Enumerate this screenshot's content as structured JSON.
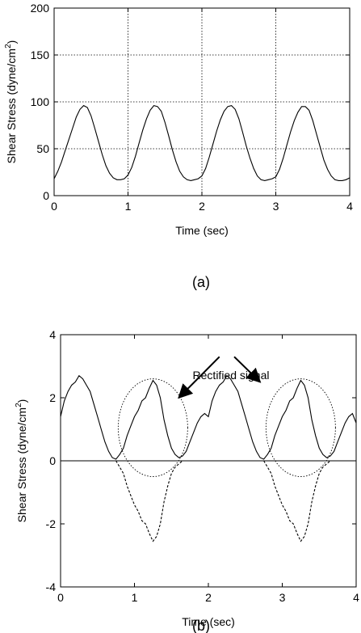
{
  "figure": {
    "panels": [
      {
        "label": "(a)",
        "xlabel": "Time (sec)",
        "ylabel_main": "Shear Stress (dyne/cm",
        "ylabel_sup": "2",
        "ylabel_close": ")"
      },
      {
        "label": "(b)",
        "xlabel": "Time (sec)",
        "ylabel_main": "Shear Stress (dyne/cm",
        "ylabel_sup": "2",
        "ylabel_close": ")",
        "annotation": "Rectified signal"
      }
    ]
  },
  "chart_data": [
    {
      "type": "line",
      "title": "",
      "xlabel": "Time (sec)",
      "ylabel": "Shear Stress (dyne/cm2)",
      "xlim": [
        0,
        4
      ],
      "ylim": [
        0,
        200
      ],
      "xticks": [
        0,
        1,
        2,
        3,
        4
      ],
      "yticks": [
        0,
        50,
        100,
        150,
        200
      ],
      "grid": "dotted",
      "gridlines_x": [
        1,
        2,
        3
      ],
      "gridlines_y": [
        50,
        100,
        150
      ],
      "series": [
        {
          "style": "solid",
          "x": [
            0,
            0.05,
            0.1,
            0.15,
            0.2,
            0.25,
            0.3,
            0.35,
            0.4,
            0.45,
            0.5,
            0.55,
            0.6,
            0.65,
            0.7,
            0.75,
            0.8,
            0.85,
            0.9,
            0.95,
            1.0,
            1.05,
            1.1,
            1.15,
            1.2,
            1.25,
            1.3,
            1.35,
            1.4,
            1.45,
            1.5,
            1.55,
            1.6,
            1.65,
            1.7,
            1.75,
            1.8,
            1.85,
            1.9,
            1.95,
            2.0,
            2.05,
            2.1,
            2.15,
            2.2,
            2.25,
            2.3,
            2.35,
            2.4,
            2.45,
            2.5,
            2.55,
            2.6,
            2.65,
            2.7,
            2.75,
            2.8,
            2.85,
            2.9,
            2.95,
            3.0,
            3.05,
            3.1,
            3.15,
            3.2,
            3.25,
            3.3,
            3.35,
            3.4,
            3.45,
            3.5,
            3.55,
            3.6,
            3.65,
            3.7,
            3.75,
            3.8,
            3.85,
            3.9,
            3.95,
            4.0
          ],
          "y": [
            18,
            26,
            36,
            48,
            60,
            72,
            84,
            92,
            96,
            94,
            85,
            72,
            58,
            44,
            32,
            24,
            19,
            17,
            17,
            18,
            22,
            30,
            42,
            56,
            70,
            82,
            91,
            96,
            95,
            90,
            78,
            64,
            49,
            36,
            26,
            20,
            17,
            16,
            17,
            18,
            21,
            29,
            41,
            55,
            69,
            81,
            90,
            95,
            96,
            92,
            82,
            68,
            53,
            40,
            29,
            21,
            17,
            16,
            17,
            18,
            20,
            28,
            40,
            54,
            68,
            80,
            89,
            95,
            95,
            91,
            80,
            66,
            52,
            38,
            28,
            21,
            17,
            16,
            16,
            17,
            19
          ]
        }
      ]
    },
    {
      "type": "line",
      "title": "",
      "xlabel": "Time (sec)",
      "ylabel": "Shear Stress (dyne/cm2)",
      "xlim": [
        0,
        4
      ],
      "ylim": [
        -4,
        4
      ],
      "xticks": [
        0,
        1,
        2,
        3,
        4
      ],
      "yticks": [
        -4,
        -2,
        0,
        2,
        4
      ],
      "grid": "off",
      "zero_line": true,
      "annotation": "Rectified signal",
      "series": [
        {
          "style": "solid",
          "x": [
            0,
            0.05,
            0.1,
            0.15,
            0.2,
            0.25,
            0.3,
            0.35,
            0.4,
            0.45,
            0.5,
            0.55,
            0.6,
            0.65,
            0.7,
            0.75,
            0.8,
            0.85,
            0.9,
            0.95,
            1.0,
            1.05,
            1.1,
            1.15,
            1.2,
            1.25,
            1.3,
            1.35,
            1.4,
            1.45,
            1.5,
            1.55,
            1.6,
            1.65,
            1.7,
            1.75,
            1.8,
            1.85,
            1.9,
            1.95,
            2.0,
            2.05,
            2.1,
            2.15,
            2.2,
            2.25,
            2.3,
            2.35,
            2.4,
            2.45,
            2.5,
            2.55,
            2.6,
            2.65,
            2.7,
            2.75,
            2.8,
            2.85,
            2.9,
            2.95,
            3.0,
            3.05,
            3.1,
            3.15,
            3.2,
            3.25,
            3.3,
            3.35,
            3.4,
            3.45,
            3.5,
            3.55,
            3.6,
            3.65,
            3.7,
            3.75,
            3.8,
            3.85,
            3.9,
            3.95,
            4.0
          ],
          "y": [
            1.4,
            1.9,
            2.2,
            2.4,
            2.5,
            2.7,
            2.6,
            2.4,
            2.2,
            1.8,
            1.4,
            1.0,
            0.6,
            0.3,
            0.1,
            0.05,
            0.2,
            0.4,
            0.8,
            1.1,
            1.4,
            1.6,
            1.9,
            2.0,
            2.3,
            2.55,
            2.4,
            2.0,
            1.3,
            0.8,
            0.4,
            0.2,
            0.1,
            0.15,
            0.3,
            0.6,
            0.9,
            1.2,
            1.4,
            1.5,
            1.4,
            1.9,
            2.2,
            2.4,
            2.5,
            2.7,
            2.6,
            2.4,
            2.2,
            1.8,
            1.4,
            1.0,
            0.6,
            0.3,
            0.1,
            0.05,
            0.2,
            0.4,
            0.8,
            1.1,
            1.4,
            1.6,
            1.9,
            2.0,
            2.3,
            2.55,
            2.4,
            2.0,
            1.3,
            0.8,
            0.4,
            0.2,
            0.1,
            0.15,
            0.3,
            0.6,
            0.9,
            1.2,
            1.4,
            1.5,
            1.2
          ]
        },
        {
          "style": "dashed",
          "x": [
            0.75,
            0.8,
            0.85,
            0.9,
            0.95,
            1.0,
            1.05,
            1.1,
            1.15,
            1.2,
            1.25,
            1.3,
            1.35,
            1.4,
            1.45,
            1.5,
            1.55,
            1.6,
            1.65
          ],
          "y": [
            0.0,
            -0.2,
            -0.4,
            -0.8,
            -1.1,
            -1.4,
            -1.6,
            -1.9,
            -2.0,
            -2.3,
            -2.55,
            -2.4,
            -2.0,
            -1.3,
            -0.8,
            -0.4,
            -0.2,
            -0.1,
            0.0
          ]
        },
        {
          "style": "dashed",
          "x": [
            2.75,
            2.8,
            2.85,
            2.9,
            2.95,
            3.0,
            3.05,
            3.1,
            3.15,
            3.2,
            3.25,
            3.3,
            3.35,
            3.4,
            3.45,
            3.5,
            3.55,
            3.6,
            3.65
          ],
          "y": [
            0.0,
            -0.2,
            -0.4,
            -0.8,
            -1.1,
            -1.4,
            -1.6,
            -1.9,
            -2.0,
            -2.3,
            -2.55,
            -2.4,
            -2.0,
            -1.3,
            -0.8,
            -0.4,
            -0.2,
            -0.1,
            0.0
          ]
        }
      ],
      "highlight_ellipses": [
        {
          "cx": 1.25,
          "cy": 1.05,
          "rx": 0.47,
          "ry": 1.55
        },
        {
          "cx": 3.25,
          "cy": 1.05,
          "rx": 0.47,
          "ry": 1.55
        }
      ],
      "arrows": [
        {
          "from_x": 2.15,
          "from_y": 3.3,
          "to_x": 1.6,
          "to_y": 2.0
        },
        {
          "from_x": 2.35,
          "from_y": 3.3,
          "to_x": 2.7,
          "to_y": 2.5
        }
      ]
    }
  ]
}
